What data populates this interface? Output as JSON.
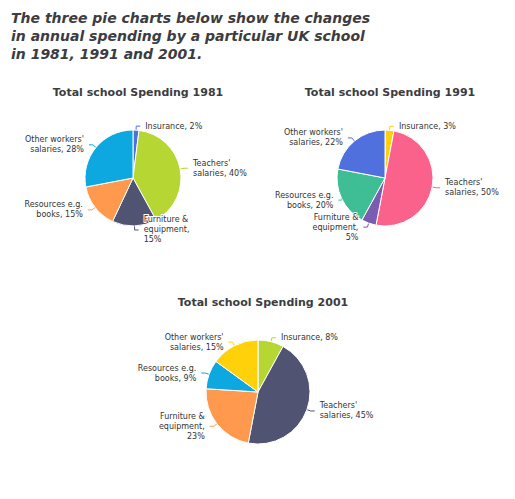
{
  "title": "The three pie charts below show the changes\nin annual spending by a particular UK school\nin 1981, 1991 and 2001.",
  "chart_data": [
    {
      "type": "pie",
      "title": "Total school Spending 1981",
      "categories": [
        "Insurance, 2%",
        "Teachers'\nsalaries, 40%",
        "Furniture &\nequipment,\n15%",
        "Resources e.g.\nbooks, 15%",
        "Other workers'\nsalaries, 28%"
      ],
      "values": [
        2,
        40,
        15,
        15,
        28
      ]
    },
    {
      "type": "pie",
      "title": "Total school Spending 1991",
      "categories": [
        "Insurance, 3%",
        "Teachers'\nsalaries, 50%",
        "Furniture &\nequipment,\n5%",
        "Resources e.g.\nbooks, 20%",
        "Other workers'\nsalaries, 22%"
      ],
      "values": [
        3,
        50,
        5,
        20,
        22
      ]
    },
    {
      "type": "pie",
      "title": "Total school Spending 2001",
      "categories": [
        "Insurance, 8%",
        "Teachers'\nsalaries, 45%",
        "Furniture &\nequipment,\n23%",
        "Resources e.g.\nbooks, 9%",
        "Other workers'\nsalaries, 15%"
      ],
      "values": [
        8,
        45,
        23,
        9,
        15
      ]
    }
  ]
}
